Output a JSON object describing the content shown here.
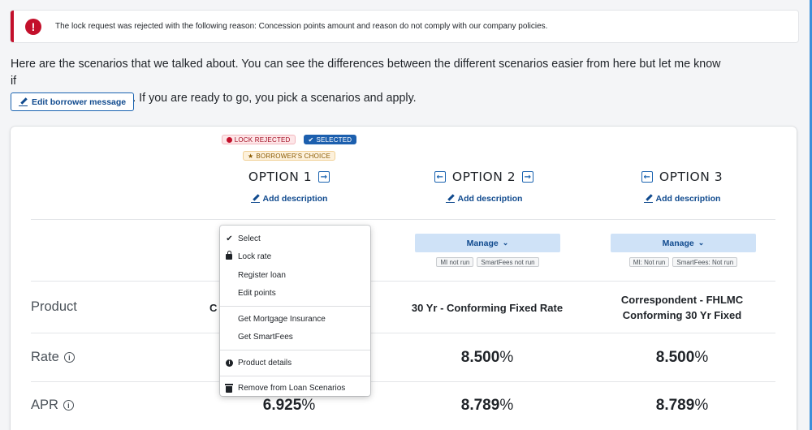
{
  "alert": {
    "icon": "error-icon",
    "text": "The lock request was rejected with the following reason: Concession points amount and reason do not comply with our company policies."
  },
  "borrower_message": {
    "line1": "Here are the scenarios that we talked about. You can see the differences between the different scenarios easier from here but let me know if",
    "line2": "you have any questions. If you are ready to go, you pick a scenarios and apply.",
    "edit_label": "Edit borrower message"
  },
  "options": [
    {
      "badges": [
        "LOCK REJECTED",
        "SELECTED"
      ],
      "choice_badge": "BORROWER'S CHOICE",
      "title": "OPTION 1",
      "add_description": "Add description",
      "product_visible": "C",
      "rate": "",
      "apr_num": "6.925",
      "apr_unit": "%"
    },
    {
      "title": "OPTION 2",
      "add_description": "Add description",
      "manage_label": "Manage",
      "tags": [
        "MI not run",
        "SmartFees not run"
      ],
      "product": "30 Yr - Conforming Fixed Rate",
      "rate_num": "8.500",
      "rate_unit": "%",
      "apr_num": "8.789",
      "apr_unit": "%"
    },
    {
      "title": "OPTION 3",
      "add_description": "Add description",
      "manage_label": "Manage",
      "tags": [
        "MI: Not run",
        "SmartFees: Not run"
      ],
      "product_line1": "Correspondent - FHLMC",
      "product_line2": "Conforming 30 Yr Fixed",
      "rate_num": "8.500",
      "rate_unit": "%",
      "apr_num": "8.789",
      "apr_unit": "%"
    }
  ],
  "row_labels": {
    "product": "Product",
    "rate": "Rate",
    "apr": "APR"
  },
  "menu": {
    "items": [
      {
        "label": "Select",
        "icon": "checkmark-icon"
      },
      {
        "label": "Lock rate",
        "icon": "lock-icon"
      },
      {
        "label": "Register loan"
      },
      {
        "label": "Edit points"
      },
      {
        "label": "Get Mortgage Insurance"
      },
      {
        "label": "Get SmartFees"
      },
      {
        "label": "Product details",
        "icon": "info-icon"
      },
      {
        "label": "Remove from Loan Scenarios",
        "icon": "trash-icon"
      }
    ]
  },
  "colors": {
    "accent": "#1a63b0",
    "error": "#c3102b",
    "manage_bg": "#cfe2f7"
  }
}
